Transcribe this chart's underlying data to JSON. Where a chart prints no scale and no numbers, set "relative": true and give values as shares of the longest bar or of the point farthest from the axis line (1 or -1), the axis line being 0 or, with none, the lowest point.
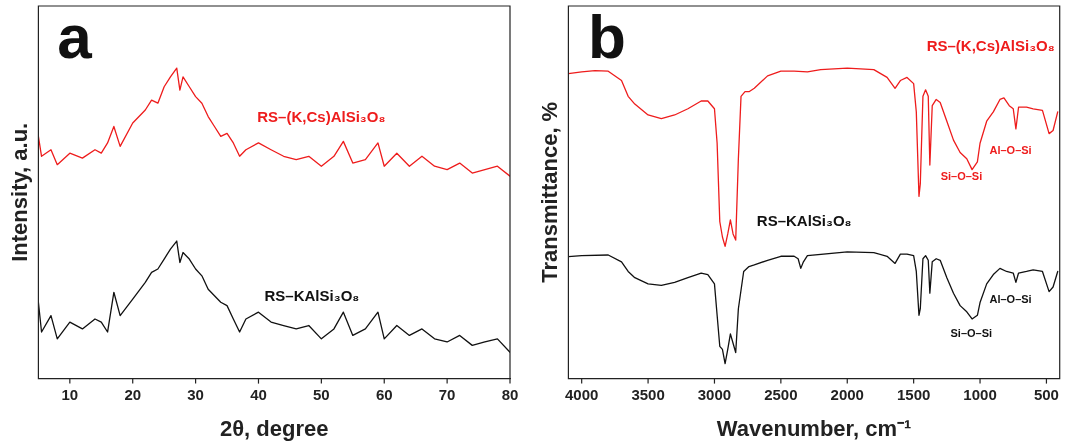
{
  "chart_data": [
    {
      "type": "line",
      "relative": true,
      "xlabel": "2θ, degree",
      "ylabel": "Intensity, a.u.",
      "xlim": [
        5,
        80
      ],
      "xticks": [
        10,
        20,
        30,
        40,
        50,
        60,
        70,
        80
      ],
      "tick_labels": "x",
      "grid": false,
      "legend": false,
      "marker": "none",
      "annotations": [
        "a"
      ],
      "x": [
        5,
        5.5,
        7,
        8,
        10,
        12,
        14,
        15,
        16,
        17,
        18,
        20,
        22,
        23,
        24,
        25,
        26,
        27,
        27.5,
        28,
        29,
        30,
        31,
        32,
        33,
        34,
        35,
        36,
        37,
        38,
        40,
        42,
        44,
        46,
        48,
        50,
        52,
        53.5,
        55,
        57,
        59,
        60,
        62,
        64,
        66,
        68,
        70,
        72,
        74,
        76,
        78,
        80
      ],
      "series": [
        {
          "name": "RS–(K,Cs)AlSi₃O₈",
          "color": "#ee1c1c",
          "values": [
            0.78,
            0.716,
            0.737,
            0.689,
            0.726,
            0.71,
            0.737,
            0.726,
            0.759,
            0.812,
            0.748,
            0.823,
            0.865,
            0.897,
            0.887,
            0.94,
            0.972,
            1.0,
            0.929,
            0.972,
            0.94,
            0.908,
            0.887,
            0.844,
            0.812,
            0.78,
            0.79,
            0.759,
            0.716,
            0.737,
            0.759,
            0.737,
            0.716,
            0.705,
            0.716,
            0.684,
            0.716,
            0.764,
            0.694,
            0.705,
            0.759,
            0.684,
            0.726,
            0.684,
            0.716,
            0.684,
            0.673,
            0.694,
            0.662,
            0.673,
            0.684,
            0.652
          ]
        },
        {
          "name": "RS–KAlSi₃O₈",
          "color": "#111111",
          "values": [
            0.246,
            0.15,
            0.203,
            0.128,
            0.182,
            0.16,
            0.192,
            0.182,
            0.15,
            0.278,
            0.203,
            0.256,
            0.31,
            0.342,
            0.353,
            0.385,
            0.417,
            0.443,
            0.374,
            0.406,
            0.385,
            0.353,
            0.331,
            0.288,
            0.267,
            0.246,
            0.235,
            0.192,
            0.15,
            0.192,
            0.214,
            0.182,
            0.171,
            0.16,
            0.171,
            0.128,
            0.16,
            0.214,
            0.139,
            0.16,
            0.214,
            0.128,
            0.171,
            0.139,
            0.16,
            0.128,
            0.118,
            0.139,
            0.107,
            0.118,
            0.128,
            0.085
          ]
        }
      ]
    },
    {
      "type": "line",
      "relative": true,
      "xlabel": "Wavenumber, cm⁻¹",
      "ylabel": "Transmittance, %",
      "xlim": [
        4100,
        400
      ],
      "xticks": [
        4000,
        3500,
        3000,
        2500,
        2000,
        1500,
        1000,
        500
      ],
      "tick_labels": "x",
      "grid": false,
      "legend": false,
      "marker": "none",
      "annotations": [
        "b",
        "Si–O–Si",
        "Al–O–Si",
        "Si–O–Si",
        "Al–O–Si"
      ],
      "series": [
        {
          "name": "RS–(K,Cs)AlSi₃O₈",
          "color": "#ee1c1c",
          "x": [
            4100,
            4000,
            3900,
            3800,
            3700,
            3650,
            3600,
            3500,
            3400,
            3300,
            3200,
            3100,
            3050,
            3000,
            2980,
            2960,
            2940,
            2920,
            2900,
            2880,
            2860,
            2840,
            2820,
            2800,
            2770,
            2740,
            2700,
            2600,
            2500,
            2400,
            2300,
            2200,
            2000,
            1800,
            1700,
            1640,
            1600,
            1550,
            1500,
            1480,
            1460,
            1450,
            1430,
            1410,
            1390,
            1378,
            1360,
            1330,
            1300,
            1250,
            1200,
            1150,
            1100,
            1060,
            1020,
            1000,
            950,
            900,
            850,
            820,
            780,
            750,
            730,
            710,
            650,
            600,
            530,
            480,
            450,
            415
          ],
          "values": [
            0.982,
            0.988,
            0.992,
            0.99,
            0.96,
            0.909,
            0.884,
            0.849,
            0.837,
            0.849,
            0.869,
            0.894,
            0.894,
            0.869,
            0.758,
            0.506,
            0.456,
            0.426,
            0.466,
            0.511,
            0.466,
            0.446,
            0.708,
            0.909,
            0.924,
            0.924,
            0.935,
            0.975,
            0.99,
            0.99,
            0.988,
            0.995,
            1.0,
            0.995,
            0.97,
            0.935,
            0.96,
            0.97,
            0.95,
            0.859,
            0.587,
            0.627,
            0.909,
            0.93,
            0.909,
            0.688,
            0.879,
            0.899,
            0.889,
            0.829,
            0.768,
            0.728,
            0.708,
            0.673,
            0.698,
            0.758,
            0.829,
            0.859,
            0.899,
            0.904,
            0.879,
            0.869,
            0.804,
            0.874,
            0.874,
            0.869,
            0.864,
            0.789,
            0.799,
            0.859
          ]
        },
        {
          "name": "RS–KAlSi₃O₈",
          "color": "#111111",
          "x": [
            4100,
            4000,
            3800,
            3700,
            3650,
            3600,
            3500,
            3400,
            3300,
            3200,
            3100,
            3050,
            3000,
            2980,
            2960,
            2940,
            2920,
            2900,
            2880,
            2860,
            2840,
            2820,
            2780,
            2740,
            2700,
            2600,
            2500,
            2400,
            2370,
            2350,
            2330,
            2300,
            2000,
            1800,
            1700,
            1640,
            1600,
            1550,
            1500,
            1480,
            1460,
            1450,
            1430,
            1410,
            1390,
            1378,
            1360,
            1330,
            1300,
            1250,
            1200,
            1150,
            1100,
            1060,
            1020,
            1000,
            950,
            900,
            850,
            800,
            750,
            730,
            710,
            650,
            600,
            530,
            480,
            450,
            415
          ],
          "values": [
            0.393,
            0.396,
            0.398,
            0.376,
            0.345,
            0.325,
            0.305,
            0.3,
            0.31,
            0.325,
            0.34,
            0.335,
            0.305,
            0.204,
            0.104,
            0.094,
            0.048,
            0.094,
            0.144,
            0.114,
            0.084,
            0.225,
            0.345,
            0.361,
            0.366,
            0.381,
            0.394,
            0.394,
            0.386,
            0.355,
            0.376,
            0.396,
            0.408,
            0.406,
            0.394,
            0.371,
            0.401,
            0.401,
            0.396,
            0.345,
            0.204,
            0.225,
            0.386,
            0.396,
            0.381,
            0.275,
            0.376,
            0.386,
            0.381,
            0.325,
            0.275,
            0.235,
            0.215,
            0.192,
            0.204,
            0.245,
            0.305,
            0.335,
            0.355,
            0.345,
            0.34,
            0.31,
            0.34,
            0.345,
            0.35,
            0.345,
            0.28,
            0.295,
            0.345
          ]
        }
      ]
    }
  ]
}
